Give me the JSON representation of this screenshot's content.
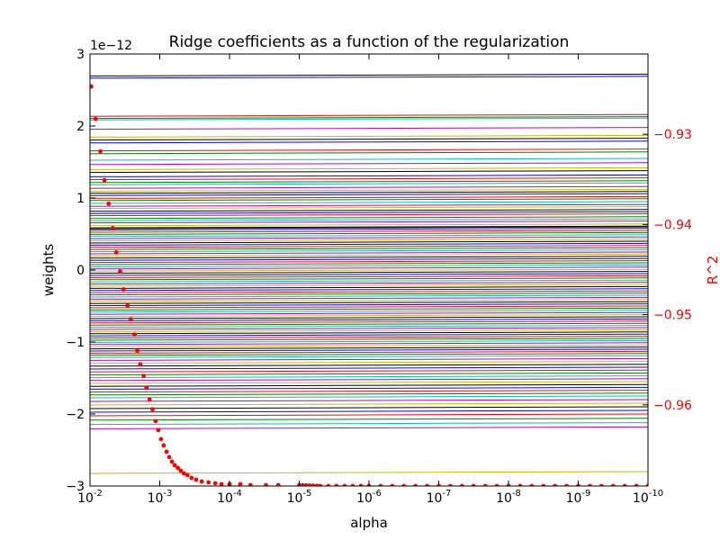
{
  "chart_data": {
    "type": "line",
    "title": "Ridge coefficients as a function of the regularization",
    "xlabel": "alpha",
    "ylabel": "weights",
    "y2label": "R^2",
    "xscale": "log",
    "x_inverted": true,
    "xlim": [
      0.01,
      1e-10
    ],
    "ylim": [
      -3e-12,
      3e-12
    ],
    "y_offset_label": "1e−12",
    "y2lim": [
      -0.969,
      -0.9211
    ],
    "x_ticks": [
      {
        "base": "10",
        "exp": "-2"
      },
      {
        "base": "10",
        "exp": "-3"
      },
      {
        "base": "10",
        "exp": "-4"
      },
      {
        "base": "10",
        "exp": "-5"
      },
      {
        "base": "10",
        "exp": "-6"
      },
      {
        "base": "10",
        "exp": "-7"
      },
      {
        "base": "10",
        "exp": "-8"
      },
      {
        "base": "10",
        "exp": "-9"
      },
      {
        "base": "10",
        "exp": "-10"
      }
    ],
    "y_ticks": [
      {
        "value": 3,
        "label": "3"
      },
      {
        "value": 2,
        "label": "2"
      },
      {
        "value": 1,
        "label": "1"
      },
      {
        "value": 0,
        "label": "0"
      },
      {
        "value": -1,
        "label": "−1"
      },
      {
        "value": -2,
        "label": "−2"
      },
      {
        "value": -3,
        "label": "−3"
      }
    ],
    "y2_ticks": [
      {
        "value": -0.93,
        "label": "−0.93"
      },
      {
        "value": -0.94,
        "label": "−0.94"
      },
      {
        "value": -0.95,
        "label": "−0.95"
      },
      {
        "value": -0.96,
        "label": "−0.96"
      }
    ],
    "coefficient_series": {
      "count": 120,
      "colors": [
        "#000000",
        "#0000ff",
        "#ff0000",
        "#008000",
        "#00bfbf",
        "#bf00bf",
        "#bfbf00"
      ],
      "weights_e12": [
        2.72,
        2.69,
        2.16,
        2.13,
        2.11,
        1.98,
        1.87,
        1.83,
        1.79,
        1.68,
        1.64,
        1.55,
        1.49,
        1.42,
        1.38,
        1.32,
        1.28,
        1.24,
        1.21,
        1.16,
        1.12,
        1.09,
        1.06,
        1.02,
        0.99,
        0.95,
        0.91,
        0.88,
        0.84,
        0.81,
        0.78,
        0.74,
        0.71,
        0.68,
        0.64,
        0.61,
        0.58,
        0.55,
        0.52,
        0.49,
        0.46,
        0.43,
        0.4,
        0.37,
        0.34,
        0.31,
        0.28,
        0.25,
        0.22,
        0.19,
        0.16,
        0.13,
        0.1,
        0.07,
        0.04,
        0.01,
        -0.02,
        -0.05,
        -0.08,
        -0.11,
        -0.14,
        -0.17,
        -0.2,
        -0.23,
        -0.26,
        -0.29,
        -0.32,
        -0.35,
        -0.38,
        -0.41,
        -0.44,
        -0.47,
        -0.5,
        -0.53,
        -0.56,
        -0.59,
        -0.62,
        -0.65,
        -0.68,
        -0.71,
        -0.74,
        -0.77,
        -0.8,
        -0.83,
        -0.86,
        -0.89,
        -0.92,
        -0.95,
        -0.98,
        -1.01,
        -1.04,
        -1.07,
        -1.1,
        -1.13,
        -1.16,
        -1.19,
        -1.23,
        -1.27,
        -1.31,
        -1.35,
        -1.39,
        -1.43,
        -1.47,
        -1.51,
        -1.55,
        -1.59,
        -1.63,
        -1.67,
        -1.71,
        -1.75,
        -1.8,
        -1.85,
        -1.9,
        -1.95,
        -2.0,
        -2.06,
        -2.12,
        -2.18,
        -2.8,
        0.6
      ]
    },
    "r2_series": {
      "name": "R^2",
      "color": "#ff0000",
      "points": [
        [
          0.0096,
          -0.9247
        ],
        [
          0.0083,
          -0.9283
        ],
        [
          0.0071,
          -0.9319
        ],
        [
          0.0062,
          -0.9351
        ],
        [
          0.0054,
          -0.9377
        ],
        [
          0.0047,
          -0.9404
        ],
        [
          0.0042,
          -0.9431
        ],
        [
          0.0037,
          -0.9452
        ],
        [
          0.0033,
          -0.9472
        ],
        [
          0.0029,
          -0.949
        ],
        [
          0.0026,
          -0.9505
        ],
        [
          0.0023,
          -0.9522
        ],
        [
          0.0021,
          -0.954
        ],
        [
          0.0019,
          -0.9555
        ],
        [
          0.0017,
          -0.9568
        ],
        [
          0.00155,
          -0.9581
        ],
        [
          0.0014,
          -0.9594
        ],
        [
          0.00127,
          -0.9605
        ],
        [
          0.00115,
          -0.9618
        ],
        [
          0.00105,
          -0.9628
        ],
        [
          0.00096,
          -0.9638
        ],
        [
          0.00088,
          -0.9645
        ],
        [
          0.0008,
          -0.9652
        ],
        [
          0.00073,
          -0.9658
        ],
        [
          0.00067,
          -0.9663
        ],
        [
          0.00061,
          -0.9667
        ],
        [
          0.00055,
          -0.967
        ],
        [
          0.0005,
          -0.9673
        ],
        [
          0.00045,
          -0.9676
        ],
        [
          0.0004,
          -0.9678
        ],
        [
          0.00035,
          -0.9681
        ],
        [
          0.0003,
          -0.9683
        ],
        [
          0.00025,
          -0.9685
        ],
        [
          0.0002,
          -0.9686
        ],
        [
          0.00016,
          -0.9687
        ],
        [
          0.00013,
          -0.9688
        ],
        [
          0.0001,
          -0.9688
        ],
        [
          7e-05,
          -0.9688
        ],
        [
          5e-05,
          -0.9689
        ],
        [
          3e-05,
          -0.9689
        ],
        [
          2e-05,
          -0.9689
        ],
        [
          1e-05,
          -0.9689
        ],
        [
          5e-06,
          -0.969
        ],
        [
          1e-06,
          -0.969
        ],
        [
          1e-07,
          -0.969
        ],
        [
          1e-08,
          -0.969
        ],
        [
          1e-09,
          -0.969
        ],
        [
          1e-10,
          -0.969
        ]
      ]
    }
  }
}
